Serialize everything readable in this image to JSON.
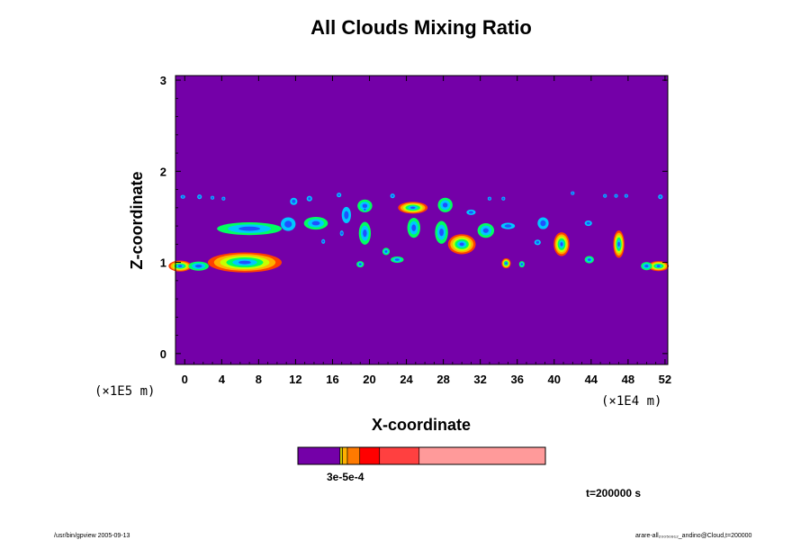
{
  "chart_data": {
    "type": "heatmap",
    "title": "All Clouds Mixing Ratio",
    "xlabel": "X-coordinate",
    "ylabel": "Z-coordinate",
    "x_ticks": [
      0,
      4,
      8,
      12,
      16,
      20,
      24,
      28,
      32,
      36,
      40,
      44,
      48,
      52
    ],
    "y_ticks": [
      0,
      1,
      2,
      3
    ],
    "xlim": [
      -1,
      52.3
    ],
    "ylim": [
      -0.12,
      3.05
    ],
    "x_unit_label": "(×1E4 m)",
    "y_unit_label": "(×1E5 m)",
    "background_color": "#7400a8",
    "colorbar": {
      "label": "3e-5e-4",
      "segments": [
        {
          "color": "#7400a8",
          "size": 17
        },
        {
          "color": "#c8c800",
          "size": 1
        },
        {
          "color": "#ffb000",
          "size": 2
        },
        {
          "color": "#ff7a00",
          "size": 5
        },
        {
          "color": "#ff0000",
          "size": 8
        },
        {
          "color": "#ff4040",
          "size": 16
        },
        {
          "color": "#ff9a9a",
          "size": 51
        }
      ]
    },
    "cloud_features": [
      {
        "x": -0.5,
        "z": 0.96,
        "w": 2.5,
        "h": 0.12,
        "level": 3
      },
      {
        "x": 1.5,
        "z": 0.96,
        "w": 2.2,
        "h": 0.1,
        "level": 2
      },
      {
        "x": 6.5,
        "z": 1.0,
        "w": 8.0,
        "h": 0.22,
        "level": 3
      },
      {
        "x": 7.0,
        "z": 1.37,
        "w": 7.0,
        "h": 0.14,
        "level": 2
      },
      {
        "x": 11.2,
        "z": 1.42,
        "w": 1.6,
        "h": 0.15,
        "level": 1
      },
      {
        "x": 14.2,
        "z": 1.43,
        "w": 2.6,
        "h": 0.14,
        "level": 2
      },
      {
        "x": 11.8,
        "z": 1.67,
        "w": 0.8,
        "h": 0.08,
        "level": 1
      },
      {
        "x": 13.5,
        "z": 1.7,
        "w": 0.6,
        "h": 0.06,
        "level": 1
      },
      {
        "x": 17.5,
        "z": 1.52,
        "w": 1.0,
        "h": 0.18,
        "level": 1
      },
      {
        "x": 19.5,
        "z": 1.62,
        "w": 1.6,
        "h": 0.14,
        "level": 2
      },
      {
        "x": 19.5,
        "z": 1.32,
        "w": 1.3,
        "h": 0.25,
        "level": 2
      },
      {
        "x": 17.0,
        "z": 1.32,
        "w": 0.4,
        "h": 0.06,
        "level": 1
      },
      {
        "x": 19.0,
        "z": 0.98,
        "w": 0.8,
        "h": 0.07,
        "level": 2
      },
      {
        "x": 21.8,
        "z": 1.12,
        "w": 0.8,
        "h": 0.08,
        "level": 2
      },
      {
        "x": 23.0,
        "z": 1.03,
        "w": 1.4,
        "h": 0.07,
        "level": 2
      },
      {
        "x": 24.7,
        "z": 1.6,
        "w": 3.2,
        "h": 0.13,
        "level": 3
      },
      {
        "x": 24.8,
        "z": 1.38,
        "w": 1.4,
        "h": 0.22,
        "level": 2
      },
      {
        "x": 28.2,
        "z": 1.63,
        "w": 1.6,
        "h": 0.16,
        "level": 2
      },
      {
        "x": 27.8,
        "z": 1.33,
        "w": 1.4,
        "h": 0.25,
        "level": 2
      },
      {
        "x": 30.0,
        "z": 1.2,
        "w": 3.0,
        "h": 0.22,
        "level": 3
      },
      {
        "x": 32.6,
        "z": 1.35,
        "w": 1.8,
        "h": 0.16,
        "level": 2
      },
      {
        "x": 31.0,
        "z": 1.55,
        "w": 1.0,
        "h": 0.06,
        "level": 1
      },
      {
        "x": 34.8,
        "z": 0.99,
        "w": 1.0,
        "h": 0.11,
        "level": 3
      },
      {
        "x": 36.5,
        "z": 0.98,
        "w": 0.6,
        "h": 0.07,
        "level": 2
      },
      {
        "x": 35.0,
        "z": 1.4,
        "w": 1.5,
        "h": 0.07,
        "level": 1
      },
      {
        "x": 38.8,
        "z": 1.43,
        "w": 1.2,
        "h": 0.13,
        "level": 1
      },
      {
        "x": 38.2,
        "z": 1.22,
        "w": 0.7,
        "h": 0.06,
        "level": 1
      },
      {
        "x": 40.8,
        "z": 1.2,
        "w": 1.7,
        "h": 0.26,
        "level": 3
      },
      {
        "x": 43.7,
        "z": 1.43,
        "w": 0.8,
        "h": 0.06,
        "level": 1
      },
      {
        "x": 43.8,
        "z": 1.03,
        "w": 1.0,
        "h": 0.08,
        "level": 2
      },
      {
        "x": 47.0,
        "z": 1.2,
        "w": 1.2,
        "h": 0.3,
        "level": 3
      },
      {
        "x": 51.3,
        "z": 0.96,
        "w": 2.2,
        "h": 0.11,
        "level": 3
      },
      {
        "x": 50.0,
        "z": 0.96,
        "w": 1.2,
        "h": 0.09,
        "level": 2
      },
      {
        "x": -0.2,
        "z": 1.72,
        "w": 0.5,
        "h": 0.04,
        "level": 1
      },
      {
        "x": 1.6,
        "z": 1.72,
        "w": 0.5,
        "h": 0.05,
        "level": 1
      },
      {
        "x": 3.0,
        "z": 1.71,
        "w": 0.4,
        "h": 0.04,
        "level": 1
      },
      {
        "x": 4.2,
        "z": 1.7,
        "w": 0.4,
        "h": 0.04,
        "level": 1
      },
      {
        "x": 16.7,
        "z": 1.74,
        "w": 0.5,
        "h": 0.05,
        "level": 1
      },
      {
        "x": 22.5,
        "z": 1.73,
        "w": 0.5,
        "h": 0.05,
        "level": 1
      },
      {
        "x": 33.0,
        "z": 1.7,
        "w": 0.4,
        "h": 0.04,
        "level": 1
      },
      {
        "x": 34.5,
        "z": 1.7,
        "w": 0.4,
        "h": 0.04,
        "level": 1
      },
      {
        "x": 42.0,
        "z": 1.76,
        "w": 0.4,
        "h": 0.04,
        "level": 1
      },
      {
        "x": 45.5,
        "z": 1.73,
        "w": 0.4,
        "h": 0.04,
        "level": 1
      },
      {
        "x": 46.7,
        "z": 1.73,
        "w": 0.4,
        "h": 0.04,
        "level": 1
      },
      {
        "x": 47.8,
        "z": 1.73,
        "w": 0.4,
        "h": 0.04,
        "level": 1
      },
      {
        "x": 51.5,
        "z": 1.72,
        "w": 0.5,
        "h": 0.05,
        "level": 1
      },
      {
        "x": 15.0,
        "z": 1.23,
        "w": 0.4,
        "h": 0.05,
        "level": 1
      },
      {
        "x": 19.5,
        "z": 1.58,
        "w": 0.4,
        "h": 0.04,
        "level": 1
      }
    ],
    "level_colors": {
      "1": [
        "#00c8ff",
        "#2050ff"
      ],
      "2": [
        "#00ff60",
        "#00c8ff",
        "#2050ff"
      ],
      "3": [
        "#ff4000",
        "#ffb000",
        "#c8ff00",
        "#00ff60",
        "#00c8ff",
        "#2050ff"
      ]
    }
  },
  "time_label": "t=200000 s",
  "footer": {
    "left": "/usr/bin/gpview 2005-09-13",
    "right": "arare-all₂₀₀₅₀₉₁₂_andino@Cloud,t=200000"
  }
}
